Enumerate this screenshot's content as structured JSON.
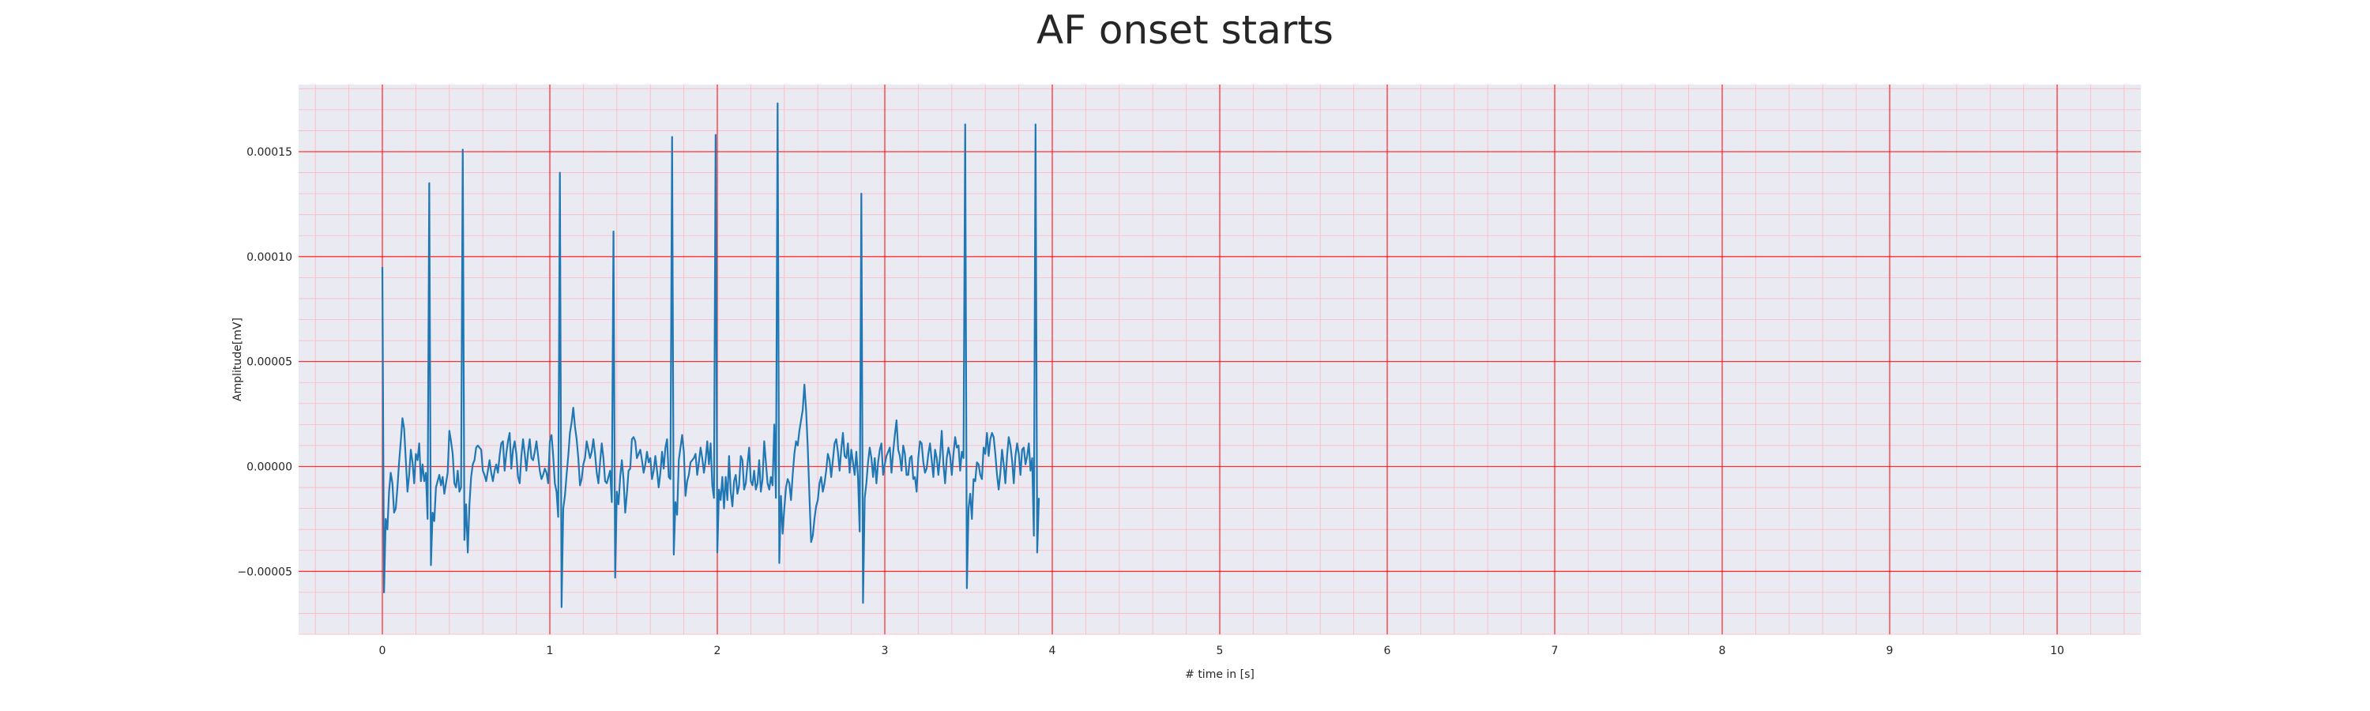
{
  "chart_data": {
    "type": "line",
    "title": "AF onset starts",
    "xlabel": "# time in [s]",
    "ylabel": "Amplitude[mV]",
    "xlim": [
      -0.5,
      10.5
    ],
    "ylim": [
      -8e-05,
      0.000182
    ],
    "xticks": [
      0,
      1,
      2,
      3,
      4,
      5,
      6,
      7,
      8,
      9,
      10
    ],
    "xtick_labels": [
      "0",
      "1",
      "2",
      "3",
      "4",
      "5",
      "6",
      "7",
      "8",
      "9",
      "10"
    ],
    "yticks": [
      -5e-05,
      0,
      5e-05,
      0.0001,
      0.00015
    ],
    "ytick_labels": [
      "−0.00005",
      "0.00000",
      "0.00005",
      "0.00010",
      "0.00015"
    ],
    "grid": true,
    "minor_grid": true,
    "background": "#eaeaf2",
    "major_grid_color": "#ff0000",
    "minor_grid_color": "#ffb6c1",
    "line_color": "#1f77b4",
    "series": [
      {
        "name": "",
        "sampling_interval_s": 0.01,
        "values": [
          9.5e-05,
          -6e-05,
          -2.5e-05,
          -3e-05,
          -1.2e-05,
          -3e-06,
          -8e-06,
          -2.2e-05,
          -2e-05,
          -1e-05,
          2e-06,
          1.2e-05,
          2.3e-05,
          1.8e-05,
          3e-06,
          -1.2e-05,
          -4e-06,
          8e-06,
          2e-06,
          -8e-06,
          6e-06,
          3e-06,
          1.1e-05,
          -7e-06,
          1e-06,
          -7e-06,
          -3e-06,
          -2.5e-05,
          0.000135,
          -4.7e-05,
          -2.2e-05,
          -2.6e-05,
          -1e-05,
          -7e-06,
          -4e-06,
          -9e-06,
          -5e-06,
          -1.3e-05,
          -8e-06,
          -3e-06,
          1.7e-05,
          1.2e-05,
          6e-06,
          -8e-06,
          -1e-05,
          -2e-06,
          -1.2e-05,
          -1e-05,
          0.000151,
          -3.5e-05,
          -1.8e-05,
          -4.1e-05,
          -1.8e-05,
          -5e-06,
          1e-06,
          3e-06,
          9e-06,
          1e-05,
          9e-06,
          8e-06,
          -2e-06,
          -4e-06,
          -7e-06,
          -2e-06,
          3e-06,
          -3e-06,
          -7e-06,
          -2e-06,
          1e-06,
          -3e-06,
          5e-06,
          1.1e-05,
          1.2e-05,
          -2e-06,
          6e-06,
          1.2e-05,
          1.6e-05,
          -1e-06,
          8e-06,
          1.2e-05,
          6e-06,
          -5e-06,
          -8e-06,
          5e-06,
          1.3e-05,
          6e-06,
          -2e-06,
          7e-06,
          1.3e-05,
          4e-06,
          3e-06,
          7e-06,
          1.2e-05,
          5e-06,
          -2e-06,
          -6e-06,
          -4e-06,
          -1e-06,
          -3e-06,
          -8e-06,
          1.2e-05,
          1.5e-05,
          5e-06,
          -8e-06,
          -1.2e-05,
          -2.4e-05,
          0.00014,
          -6.7e-05,
          -2e-05,
          -1.4e-05,
          -4e-06,
          5e-06,
          1.6e-05,
          2.1e-05,
          2.8e-05,
          1.9e-05,
          1.3e-05,
          4e-06,
          -9e-06,
          -6e-06,
          1e-06,
          4e-06,
          1.2e-05,
          8e-06,
          4e-06,
          7e-06,
          1.3e-05,
          6e-06,
          -3e-06,
          -8e-06,
          2e-06,
          1.1e-05,
          4e-06,
          -7e-06,
          -8e-06,
          -5e-06,
          -2e-06,
          -1.7e-05,
          0.000112,
          -5.3e-05,
          -1.2e-05,
          -1.8e-05,
          -5e-06,
          3e-06,
          -6e-06,
          -2.2e-05,
          -1.3e-05,
          -2e-06,
          -1e-06,
          1.3e-05,
          1.4e-05,
          1.2e-05,
          4e-06,
          6e-06,
          8e-06,
          3e-06,
          -3e-06,
          1e-06,
          7e-06,
          2e-06,
          4e-06,
          -6e-06,
          -2e-06,
          5e-06,
          -2e-06,
          -1e-05,
          -3e-06,
          7e-06,
          -1e-06,
          9e-06,
          1.3e-05,
          -5e-06,
          -6e-06,
          0.000157,
          -4.2e-05,
          -1.7e-05,
          -2.3e-05,
          3e-06,
          9e-06,
          1.5e-05,
          7e-06,
          -1.4e-05,
          -7e-06,
          -4e-06,
          2e-06,
          3e-06,
          4e-06,
          6e-06,
          -4e-06,
          2e-06,
          9e-06,
          4e-06,
          -3e-06,
          3e-06,
          1.2e-05,
          1e-06,
          1.1e-05,
          -9e-06,
          -1.5e-05,
          0.000158,
          -4.1e-05,
          -1.1e-05,
          -1.6e-05,
          -5e-06,
          -2e-05,
          -5e-06,
          -1.6e-05,
          5e-06,
          -1.2e-05,
          -1.9e-05,
          -7e-06,
          -4e-06,
          -1.3e-05,
          -9e-06,
          5e-06,
          3e-06,
          -1.1e-05,
          -8e-06,
          1e-06,
          9e-06,
          -7e-06,
          -9e-06,
          -2e-06,
          -1.1e-05,
          -8e-06,
          3e-06,
          -1.2e-05,
          -6e-06,
          1.2e-05,
          2e-06,
          -8e-06,
          -1.1e-05,
          -5e-06,
          -9e-06,
          2e-05,
          -1.5e-05,
          0.000173,
          -4.6e-05,
          -1.4e-05,
          -3.2e-05,
          -2e-05,
          -1e-05,
          -6e-06,
          -8e-06,
          -1.6e-05,
          -4e-06,
          6e-06,
          1.2e-05,
          1e-05,
          1.7e-05,
          2.2e-05,
          2.7e-05,
          3.9e-05,
          2.7e-05,
          9e-06,
          -1.4e-05,
          -3.6e-05,
          -3.3e-05,
          -2.5e-05,
          -1.9e-05,
          -1.6e-05,
          -8e-06,
          -5e-06,
          -1.2e-05,
          -8e-06,
          -2e-06,
          6e-06,
          3e-06,
          -5e-06,
          3e-06,
          1.1e-05,
          1.3e-05,
          7e-06,
          -2e-06,
          8e-06,
          1.6e-05,
          5e-06,
          4e-06,
          1.1e-05,
          -3e-06,
          8e-06,
          2e-06,
          -4e-06,
          7e-06,
          -5e-06,
          -3.1e-05,
          0.00013,
          -6.5e-05,
          -1.5e-05,
          -8e-06,
          2e-06,
          9e-06,
          4e-06,
          -5e-06,
          4e-06,
          -8e-06,
          2e-06,
          8e-06,
          1.1e-05,
          -4e-06,
          1e-06,
          5e-06,
          7e-06,
          9e-06,
          -3e-06,
          7e-06,
          1.5e-05,
          2.2e-05,
          8e-06,
          5e-06,
          -2e-06,
          1e-05,
          6e-06,
          -4e-06,
          -4e-06,
          4e-06,
          5e-06,
          -6e-06,
          -5e-06,
          -1.2e-05,
          4e-06,
          1.2e-05,
          1.1e-05,
          2e-06,
          -3e-06,
          -1e-06,
          6e-06,
          1.1e-05,
          3e-06,
          -5e-06,
          8e-06,
          4e-06,
          -4e-06,
          5e-06,
          1.7e-05,
          1e-06,
          -8e-06,
          4e-06,
          9e-06,
          5e-06,
          -4e-06,
          6e-06,
          1.4e-05,
          9e-06,
          1e-05,
          -2e-06,
          7e-06,
          4e-06,
          0.000163,
          -5.8e-05,
          -2e-05,
          -1.3e-05,
          -2.5e-05,
          -6e-06,
          -7e-06,
          2e-06,
          1e-06,
          -4e-06,
          -6e-06,
          9e-06,
          6e-06,
          1.6e-05,
          5e-06,
          1.3e-05,
          1.6e-05,
          1.4e-05,
          6e-06,
          -4e-06,
          -1.1e-05,
          -3e-06,
          8e-06,
          1e-06,
          -8e-06,
          5e-06,
          1.4e-05,
          1e-05,
          3e-06,
          -8e-06,
          5e-06,
          1.1e-05,
          6e-06,
          -4e-06,
          8e-06,
          9e-06,
          1e-06,
          5e-06,
          1.1e-05,
          -2e-06,
          4e-06,
          -3.3e-05,
          0.000163,
          -4.1e-05,
          -1.5e-05
        ]
      }
    ]
  }
}
